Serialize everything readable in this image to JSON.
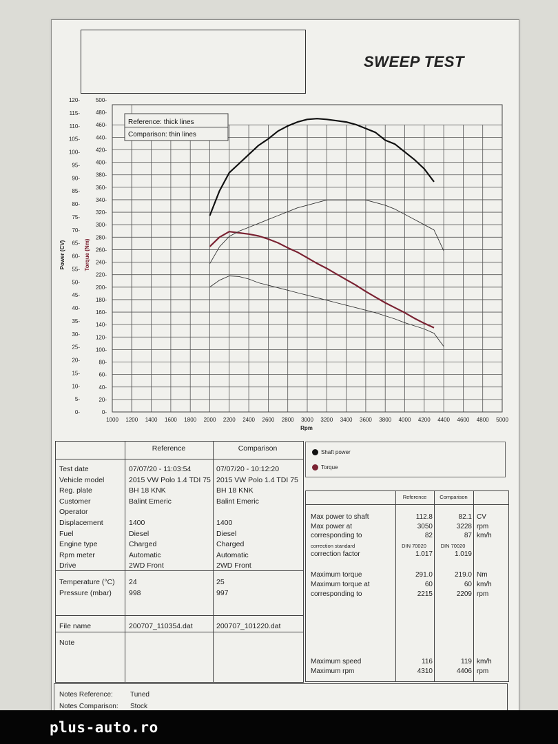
{
  "page": {
    "title": "SWEEP TEST",
    "brand": "plus-auto.ro"
  },
  "chart_data": {
    "type": "line",
    "xlabel": "Rpm",
    "ylabel_power": "Power (CV)",
    "ylabel_torque": "Torque (Nm)",
    "xlim": [
      1000,
      5000
    ],
    "xticks": [
      1000,
      1200,
      1400,
      1600,
      1800,
      2000,
      2200,
      2400,
      2600,
      2800,
      3000,
      3200,
      3400,
      3600,
      3800,
      4000,
      4200,
      4400,
      4600,
      4800,
      5000
    ],
    "power_lim": [
      0,
      120
    ],
    "power_ticks": [
      0,
      5,
      10,
      15,
      20,
      25,
      30,
      35,
      40,
      45,
      50,
      55,
      60,
      65,
      70,
      75,
      80,
      85,
      90,
      95,
      100,
      105,
      110,
      115,
      120
    ],
    "torque_lim": [
      0,
      500
    ],
    "torque_ticks": [
      0,
      20,
      40,
      60,
      80,
      100,
      120,
      140,
      160,
      180,
      200,
      220,
      240,
      260,
      280,
      300,
      320,
      340,
      360,
      380,
      400,
      420,
      440,
      460,
      480,
      500
    ],
    "legend_notes": [
      "Reference: thick lines",
      "Comparison: thin lines"
    ],
    "legend": [
      {
        "name": "Shaft power",
        "color": "#111111"
      },
      {
        "name": "Torque",
        "color": "#7a2232"
      }
    ],
    "series": [
      {
        "name": "Shaft power",
        "set": "Reference",
        "axis": "power",
        "color": "#111111",
        "x": [
          2000,
          2100,
          2200,
          2300,
          2400,
          2500,
          2600,
          2700,
          2800,
          2900,
          3000,
          3100,
          3200,
          3300,
          3400,
          3500,
          3600,
          3700,
          3800,
          3900,
          4000,
          4100,
          4200,
          4300
        ],
        "y": [
          75.5,
          85,
          92,
          95.5,
          99,
          102.5,
          105,
          108,
          110,
          111.5,
          112.5,
          112.8,
          112.5,
          112,
          111.5,
          110.5,
          109,
          107.5,
          104.5,
          103,
          100,
          97,
          93.5,
          88.5
        ]
      },
      {
        "name": "Torque",
        "set": "Reference",
        "axis": "torque",
        "color": "#7a2232",
        "x": [
          2000,
          2100,
          2200,
          2300,
          2400,
          2500,
          2600,
          2700,
          2800,
          2900,
          3000,
          3100,
          3200,
          3300,
          3400,
          3500,
          3600,
          3700,
          3800,
          3900,
          4000,
          4100,
          4200,
          4300
        ],
        "y": [
          265,
          280,
          289,
          287,
          285,
          282,
          277,
          271,
          263,
          256,
          247,
          238,
          230,
          221,
          212,
          203,
          193,
          184,
          175,
          167,
          159,
          150,
          142,
          135
        ]
      },
      {
        "name": "Shaft power",
        "set": "Comparison",
        "axis": "power",
        "color": "#333333",
        "x": [
          2000,
          2100,
          2200,
          2300,
          2400,
          2500,
          2600,
          2700,
          2800,
          2900,
          3000,
          3100,
          3200,
          3300,
          3400,
          3500,
          3600,
          3700,
          3800,
          3900,
          4000,
          4100,
          4200,
          4300,
          4400
        ],
        "y": [
          57,
          63.5,
          67.5,
          69.5,
          71,
          72.5,
          74,
          75.5,
          77,
          78.5,
          79.5,
          80.5,
          81.5,
          81.5,
          81.5,
          81.5,
          81.5,
          80.5,
          79.5,
          78,
          76,
          74,
          72,
          70,
          62
        ]
      },
      {
        "name": "Torque",
        "set": "Comparison",
        "axis": "torque",
        "color": "#333333",
        "x": [
          2000,
          2100,
          2200,
          2300,
          2400,
          2500,
          2600,
          2700,
          2800,
          2900,
          3000,
          3100,
          3200,
          3300,
          3400,
          3500,
          3600,
          3700,
          3800,
          3900,
          4000,
          4100,
          4200,
          4300,
          4400
        ],
        "y": [
          200,
          211,
          218,
          217,
          213,
          207,
          203,
          199,
          195,
          191,
          187,
          183,
          179,
          175,
          171,
          167,
          163,
          159,
          154,
          149,
          143,
          138,
          133,
          126,
          105
        ]
      }
    ]
  },
  "info_table": {
    "col_headers": [
      "Reference",
      "Comparison"
    ],
    "rows1_labels": [
      "Test date",
      "Vehicle model",
      "Reg. plate",
      "Customer",
      "Operator",
      "Displacement",
      "Fuel",
      "Engine type",
      "Rpm meter",
      "Drive"
    ],
    "rows1_ref": [
      "07/07/20 - 11:03:54",
      "2015 VW Polo 1.4 TDI 75",
      "BH 18 KNK",
      "Balint Emeric",
      "",
      "1400",
      "Diesel",
      "Charged",
      "Automatic",
      "2WD Front"
    ],
    "rows1_cmp": [
      "07/07/20 - 10:12:20",
      "2015 VW Polo 1.4 TDI 75",
      "BH 18 KNK",
      "Balint Emeric",
      "",
      "1400",
      "Diesel",
      "Charged",
      "Automatic",
      "2WD Front"
    ],
    "rows2_labels": [
      "Temperature (°C)",
      "Pressure (mbar)"
    ],
    "rows2_ref": [
      "24",
      "998"
    ],
    "rows2_cmp": [
      "25",
      "997"
    ],
    "file_label": "File name",
    "file_ref": "200707_110354.dat",
    "file_cmp": "200707_101220.dat",
    "note_label": "Note"
  },
  "results": {
    "col_headers": [
      "Reference",
      "Comparison"
    ],
    "group1": [
      {
        "label": "Max power to shaft",
        "ref": "112.8",
        "cmp": "82.1",
        "unit": "CV"
      },
      {
        "label": "Max power at",
        "ref": "3050",
        "cmp": "3228",
        "unit": "rpm"
      },
      {
        "label": "corresponding to",
        "ref": "82",
        "cmp": "87",
        "unit": "km/h"
      },
      {
        "label": "correction standard",
        "ref": "DIN 70020",
        "cmp": "DIN 70020",
        "unit": ""
      },
      {
        "label": "correction factor",
        "ref": "1.017",
        "cmp": "1.019",
        "unit": ""
      }
    ],
    "group2": [
      {
        "label": "Maximum torque",
        "ref": "291.0",
        "cmp": "219.0",
        "unit": "Nm"
      },
      {
        "label": "Maximum torque at",
        "ref": "60",
        "cmp": "60",
        "unit": "km/h"
      },
      {
        "label": "corresponding to",
        "ref": "2215",
        "cmp": "2209",
        "unit": "rpm"
      }
    ],
    "group3": [
      {
        "label": "Maximum speed",
        "ref": "116",
        "cmp": "119",
        "unit": "km/h"
      },
      {
        "label": "Maximum rpm",
        "ref": "4310",
        "cmp": "4406",
        "unit": "rpm"
      }
    ]
  },
  "notes": {
    "ref_label": "Notes Reference:",
    "ref_value": "Tuned",
    "cmp_label": "Notes Comparison:",
    "cmp_value": "Stock"
  }
}
